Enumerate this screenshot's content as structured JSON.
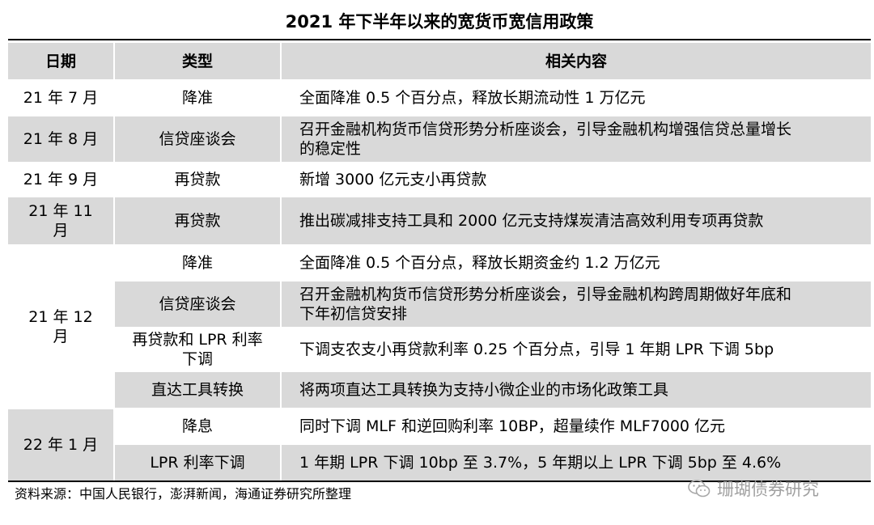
{
  "title": "2021 年下半年以来的宽货币宽信用政策",
  "headers": {
    "date": "日期",
    "type": "类型",
    "content": "相关内容"
  },
  "dates": {
    "d1": "21 年 7 月",
    "d2": "21 年 8 月",
    "d3": "21 年 9 月",
    "d4a": "21 年 11",
    "d4b": "月",
    "d5a": "21 年 12",
    "d5b": "月",
    "d6": "22 年 1 月"
  },
  "rows": [
    {
      "type": [
        "降准"
      ],
      "content": [
        "全面降准 0.5 个百分点，释放长期流动性 1 万亿元"
      ]
    },
    {
      "type": [
        "信贷座谈会"
      ],
      "content": [
        "召开金融机构货币信贷形势分析座谈会，引导金融机构增强信贷总量增长",
        "的稳定性"
      ]
    },
    {
      "type": [
        "再贷款"
      ],
      "content": [
        "新增 3000 亿元支小再贷款"
      ]
    },
    {
      "type": [
        "再贷款"
      ],
      "content": [
        "推出碳减排支持工具和 2000 亿元支持煤炭清洁高效利用专项再贷款"
      ]
    },
    {
      "type": [
        "降准"
      ],
      "content": [
        "全面降准 0.5 个百分点，释放长期资金约 1.2 万亿元"
      ]
    },
    {
      "type": [
        "信贷座谈会"
      ],
      "content": [
        "召开金融机构货币信贷形势分析座谈会，引导金融机构跨周期做好年底和",
        "下年初信贷安排"
      ]
    },
    {
      "type": [
        "再贷款和 LPR 利率",
        "下调"
      ],
      "content": [
        "下调支农支小再贷款利率 0.25 个百分点，引导 1 年期 LPR 下调 5bp"
      ]
    },
    {
      "type": [
        "直达工具转换"
      ],
      "content": [
        "将两项直达工具转换为支持小微企业的市场化政策工具"
      ]
    },
    {
      "type": [
        "降息"
      ],
      "content": [
        "同时下调 MLF 和逆回购利率 10BP，超量续作 MLF7000 亿元"
      ]
    },
    {
      "type": [
        "LPR 利率下调"
      ],
      "content": [
        "1 年期 LPR 下调 10bp 至 3.7%，5 年期以上 LPR 下调 5bp 至 4.6%"
      ]
    }
  ],
  "source": "资料来源：中国人民银行，澎湃新闻，海通证券研究所整理",
  "watermark": {
    "text": "珊瑚债券研究",
    "icon": "wechat-icon"
  }
}
